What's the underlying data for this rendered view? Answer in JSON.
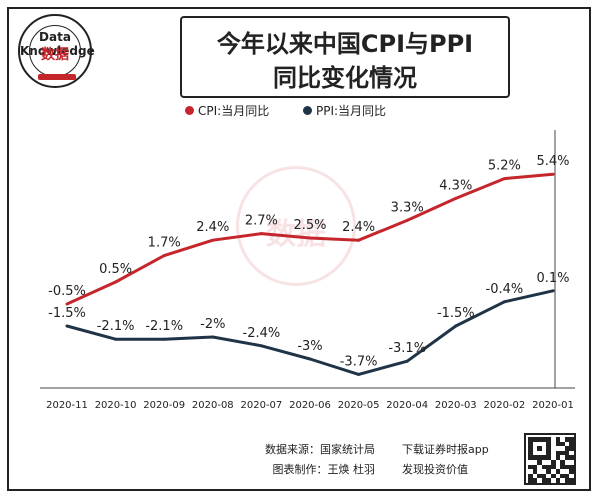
{
  "header": {
    "title_line1": "今年以来中国CPI与PPI",
    "title_line2": "同比变化情况"
  },
  "logo": {
    "top_text": "Data Knowledge",
    "main_text": "数据"
  },
  "legend": {
    "cpi_label": "CPI:当月同比",
    "ppi_label": "PPI:当月同比",
    "cpi_color": "#c5262c",
    "ppi_color": "#1f3447"
  },
  "footer": {
    "source_label": "数据来源：国家统计局",
    "author_label": "图表制作：王焕 杜羽",
    "app_label": "下载证券时报app",
    "app_sub": "发现投资价值"
  },
  "watermark": {
    "text": "数据"
  },
  "chart_data": {
    "type": "line",
    "title": "今年以来中国CPI与PPI同比变化情况",
    "categories": [
      "2020-01",
      "2020-02",
      "2020-03",
      "2020-04",
      "2020-05",
      "2020-06",
      "2020-07",
      "2020-08",
      "2020-09",
      "2020-10",
      "2020-11"
    ],
    "series": [
      {
        "name": "CPI:当月同比",
        "color": "#c5262c",
        "values": [
          5.4,
          5.2,
          4.3,
          3.3,
          2.4,
          2.5,
          2.7,
          2.4,
          1.7,
          0.5,
          -0.5
        ],
        "labels": [
          "5.4%",
          "5.2%",
          "4.3%",
          "3.3%",
          "2.4%",
          "2.5%",
          "2.7%",
          "2.4%",
          "1.7%",
          "0.5%",
          "-0.5%"
        ]
      },
      {
        "name": "PPI:当月同比",
        "color": "#1f3447",
        "values": [
          0.1,
          -0.4,
          -1.5,
          -3.1,
          -3.7,
          -3.0,
          -2.4,
          -2.0,
          -2.1,
          -2.1,
          -1.5
        ],
        "labels": [
          "0.1%",
          "-0.4%",
          "-1.5%",
          "-3.1%",
          "-3.7%",
          "-3%",
          "-2.4%",
          "-2%",
          "-2.1%",
          "-2.1%",
          "-1.5%"
        ]
      }
    ],
    "x_direction": "mirrored (2020-01 at right, 2020-11 at left)",
    "ylim": [
      -4.5,
      6.5
    ],
    "grid": false,
    "legend_position": "top-left"
  }
}
